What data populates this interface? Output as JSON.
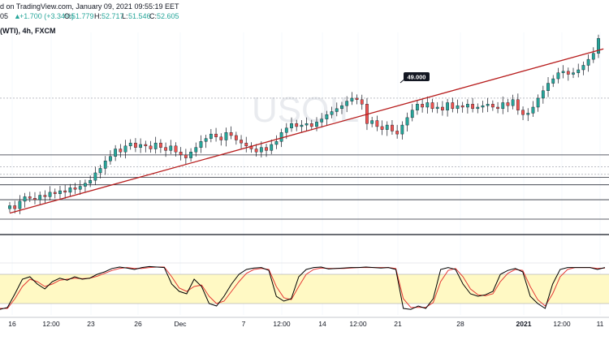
{
  "header": {
    "published": "d on TradingView.com, January 09, 2021 09:55:19 EET",
    "ohlc_prefix": "05",
    "change": "+1.700 (+3.34%)",
    "open_label": "O:",
    "open": "51.779",
    "high_label": "H:",
    "high": "52.717",
    "low_label": "L:",
    "low": "51.546",
    "close_label": "C:",
    "close": "52.605"
  },
  "symbol": "(WTI), 4h, FXCM",
  "watermark": "USOIL",
  "price_tag": "49.000",
  "colors": {
    "up": "#26a69a",
    "down": "#ef5350",
    "trendline": "#b71c1c",
    "stoch_k": "#000000",
    "stoch_d": "#e53935",
    "band": "#fff9c4",
    "change": "#26a69a"
  },
  "x_axis": [
    "16",
    "12:00",
    "23",
    "26",
    "Dec",
    "7",
    "12:00",
    "14",
    "12:00",
    "21",
    "28",
    "2021",
    "12:00",
    "11"
  ],
  "chart_data": {
    "type": "candlestick",
    "symbol": "(WTI), 4h, FXCM",
    "annotation": "49.000",
    "last_close": 52.605,
    "candles_close": [
      41.4,
      41.2,
      41.7,
      42.0,
      41.9,
      41.8,
      42.1,
      42.0,
      42.3,
      42.2,
      42.4,
      42.3,
      42.6,
      42.5,
      42.7,
      42.9,
      43.1,
      43.6,
      43.9,
      44.4,
      44.7,
      45.2,
      45.0,
      45.4,
      45.6,
      45.3,
      45.5,
      45.4,
      45.2,
      45.6,
      45.3,
      45.1,
      45.4,
      45.0,
      44.8,
      44.6,
      45.0,
      45.3,
      45.7,
      45.9,
      46.2,
      46.0,
      45.8,
      46.3,
      46.1,
      45.8,
      45.6,
      45.4,
      45.2,
      45.0,
      45.3,
      45.1,
      45.5,
      45.7,
      46.3,
      46.6,
      46.9,
      46.7,
      46.8,
      46.9,
      46.7,
      47.0,
      47.2,
      47.5,
      47.7,
      47.9,
      48.1,
      48.4,
      48.6,
      48.5,
      48.2,
      46.9,
      47.1,
      46.7,
      46.5,
      46.8,
      46.4,
      46.2,
      46.8,
      47.3,
      47.8,
      48.2,
      48.0,
      48.3,
      47.9,
      48.0,
      47.8,
      48.3,
      47.9,
      48.1,
      48.0,
      48.2,
      47.9,
      48.0,
      48.1,
      48.2,
      48.0,
      47.9,
      48.3,
      48.1,
      48.5,
      47.8,
      47.5,
      47.6,
      48.0,
      48.6,
      49.1,
      49.6,
      49.9,
      50.3,
      50.4,
      50.2,
      50.3,
      50.5,
      50.8,
      51.2,
      51.6,
      52.6
    ],
    "stochastic": {
      "k": [
        8,
        12,
        40,
        70,
        75,
        60,
        50,
        65,
        72,
        68,
        75,
        70,
        72,
        80,
        85,
        92,
        95,
        93,
        90,
        94,
        96,
        95,
        94,
        60,
        45,
        40,
        70,
        55,
        20,
        15,
        35,
        60,
        80,
        90,
        93,
        94,
        88,
        35,
        25,
        30,
        75,
        90,
        94,
        95,
        91,
        92,
        93,
        94,
        94,
        95,
        94,
        93,
        94,
        90,
        10,
        8,
        15,
        10,
        30,
        90,
        94,
        90,
        60,
        40,
        35,
        38,
        45,
        80,
        88,
        92,
        85,
        35,
        20,
        10,
        60,
        90,
        94,
        94,
        94,
        94,
        90,
        94
      ],
      "d": [
        10,
        10,
        30,
        55,
        70,
        65,
        55,
        60,
        68,
        70,
        72,
        71,
        72,
        76,
        82,
        88,
        92,
        94,
        92,
        92,
        94,
        95,
        95,
        75,
        52,
        45,
        55,
        58,
        35,
        20,
        25,
        45,
        65,
        82,
        90,
        92,
        90,
        55,
        32,
        28,
        55,
        80,
        90,
        93,
        92,
        92,
        92,
        93,
        94,
        94,
        94,
        94,
        94,
        92,
        30,
        12,
        12,
        12,
        22,
        65,
        88,
        92,
        75,
        50,
        38,
        36,
        40,
        65,
        82,
        90,
        88,
        55,
        28,
        15,
        40,
        75,
        90,
        94,
        94,
        94,
        92,
        93
      ],
      "band": [
        20,
        80
      ],
      "ylim": [
        0,
        100
      ]
    },
    "trendline": {
      "from": [
        0,
        40.9
      ],
      "to": [
        118,
        51.9
      ]
    },
    "horizontal_levels": [
      44.8,
      43.3,
      42.8,
      41.8,
      40.5
    ],
    "dotted_levels": [
      48.6,
      44.0,
      43.5
    ],
    "ylim": [
      40.5,
      53.0
    ]
  }
}
